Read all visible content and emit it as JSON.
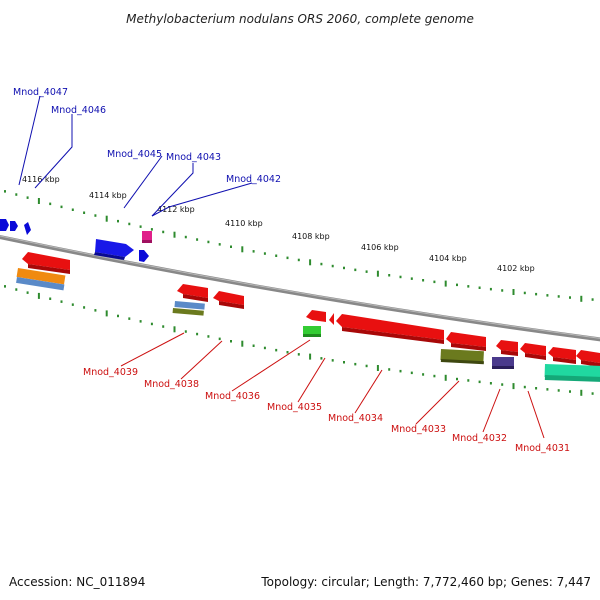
{
  "title": "Methylobacterium nodulans ORS 2060, complete genome",
  "footer": {
    "accession": "Accession: NC_011894",
    "summary": "Topology: circular; Length: 7,772,460 bp; Genes: 7,447"
  },
  "scale_labels": [
    "4116 kbp",
    "4114 kbp",
    "4112 kbp",
    "4110 kbp",
    "4108 kbp",
    "4106 kbp",
    "4104 kbp",
    "4102 kbp"
  ],
  "genes_top": [
    "Mnod_4047",
    "Mnod_4046",
    "Mnod_4045",
    "Mnod_4043",
    "Mnod_4042"
  ],
  "genes_bottom": [
    "Mnod_4039",
    "Mnod_4038",
    "Mnod_4036",
    "Mnod_4035",
    "Mnod_4034",
    "Mnod_4033",
    "Mnod_4032",
    "Mnod_4031"
  ],
  "colors": {
    "forward_gene": "#0a0ad8",
    "reverse_gene": "#e81010",
    "top_label": "#1010b0",
    "bottom_label": "#cc1010",
    "backbone": "#888888",
    "ticks": "#2e8b2e",
    "feature_orange": "#f08a10",
    "feature_blue": "#5a8ac8",
    "feature_olive": "#6b7a1e",
    "feature_green": "#33cc33",
    "feature_purple": "#4a3a8c",
    "feature_teal": "#20d8a0",
    "feature_magenta": "#e0208a"
  }
}
